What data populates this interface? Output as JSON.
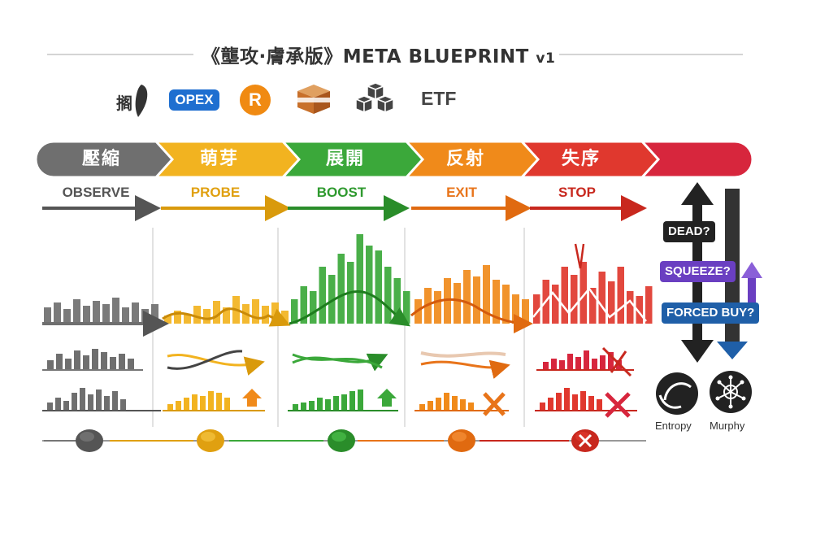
{
  "title": {
    "main": "《壟攻·膚承版》META BLUEPRINT ",
    "version": "v1"
  },
  "icons": {
    "taiwan_label": "搁",
    "opex": "OPEX",
    "r_badge": "R",
    "etf": "ETF",
    "items": [
      "taiwan-map-icon",
      "opex-badge",
      "r-badge",
      "box-icon",
      "cubes-icon",
      "etf-label"
    ]
  },
  "phases": [
    {
      "label": "壓縮",
      "sub": "OBSERVE",
      "color": "#6f6f6f",
      "dark": "#555555"
    },
    {
      "label": "萌芽",
      "sub": "PROBE",
      "color": "#f2b320",
      "dark": "#d99a0c"
    },
    {
      "label": "展開",
      "sub": "BOOST",
      "color": "#3ba83a",
      "dark": "#2a8d2a"
    },
    {
      "label": "反射",
      "sub": "EXIT",
      "color": "#f08a1a",
      "dark": "#e06a10"
    },
    {
      "label": "失序",
      "sub": "STOP",
      "color": "#e0382e",
      "dark": "#c8281e"
    },
    {
      "label": "",
      "sub": "",
      "color": "#d7263d",
      "dark": "#b81c30"
    }
  ],
  "side": {
    "dead": "DEAD?",
    "squeeze": "SQUEEZE?",
    "forced_buy": "FORCED BUY?",
    "entropy": "Entropy",
    "murphy": "Murphy",
    "colors": {
      "dead": "#222222",
      "squeeze": "#6a3fc1",
      "forced_buy": "#1f5fa8"
    }
  },
  "status_dots": [
    "gray",
    "yellow",
    "green",
    "orange",
    "red-x"
  ]
}
